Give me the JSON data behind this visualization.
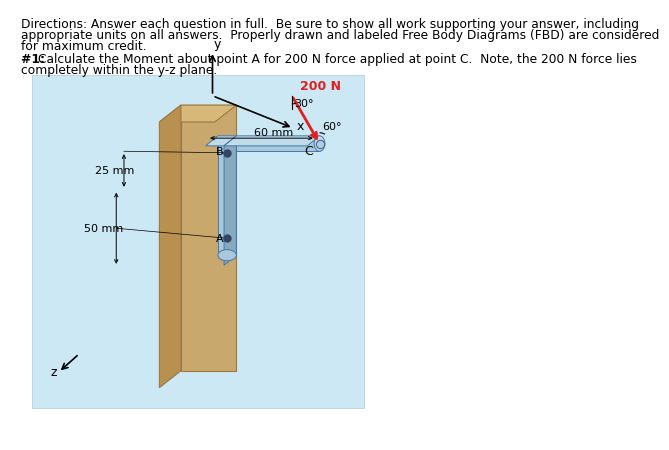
{
  "title_line1": "Directions: Answer each question in full.  Be sure to show all work supporting your answer, including",
  "title_line2": "appropriate units on all answers.  Properly drawn and labeled Free Body Diagrams (FBD) are considered",
  "title_line3": "for maximum credit.",
  "q_bold": "#1: ",
  "q_rest": " Calculate the Moment about point A for 200 N force applied at point C.  Note, the 200 N force lies\ncompletely within the y-z plane.",
  "bg_color": "#cce8f4",
  "wall_front_color": "#c8a86c",
  "wall_dark_color": "#b89050",
  "wall_top_color": "#d8b878",
  "bracket_face_color": "#a8c8dc",
  "bracket_top_color": "#c0dcea",
  "bracket_side_color": "#88aabf",
  "force_color": "#e02020",
  "label_200N": "200 N",
  "label_30": "30°",
  "label_60": "60°",
  "label_60mm": "60 mm",
  "label_25mm": "25 mm",
  "label_50mm": "50 mm",
  "label_A": "A",
  "label_B": "B",
  "label_C": "C",
  "label_x": "x",
  "label_y": "y",
  "label_z": "z"
}
